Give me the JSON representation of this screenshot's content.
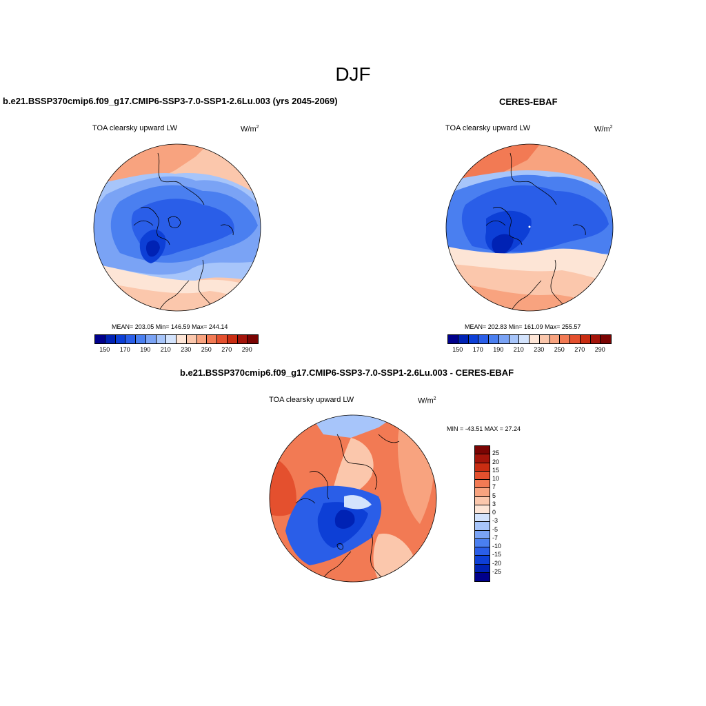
{
  "title": "DJF",
  "panel_left": {
    "title": "b.e21.BSSP370cmip6.f09_g17.CMIP6-SSP3-7.0-SSP1-2.6Lu.003 (yrs 2045-2069)",
    "variable": "TOA clearsky upward LW",
    "units": "W/m",
    "units_sup": "2",
    "stats": "MEAN= 203.05  Min= 146.59  Max= 244.14"
  },
  "panel_right": {
    "title": "CERES-EBAF",
    "variable": "TOA clearsky upward LW",
    "units": "W/m",
    "units_sup": "2",
    "stats": "MEAN= 202.83  Min= 161.09  Max= 255.57"
  },
  "panel_diff": {
    "title": "b.e21.BSSP370cmip6.f09_g17.CMIP6-SSP3-7.0-SSP1-2.6Lu.003 - CERES-EBAF",
    "variable": "TOA clearsky upward LW",
    "units": "W/m",
    "units_sup": "2",
    "minmax": "MIN = -43.51 MAX =  27.24"
  },
  "colorbar_abs": {
    "colors": [
      "#00008b",
      "#0022b4",
      "#0d3fd6",
      "#2a5ee8",
      "#4a7ff0",
      "#7aa3f5",
      "#a7c5fa",
      "#d3e3fc",
      "#fde5d6",
      "#fbc7ac",
      "#f8a37f",
      "#f27a54",
      "#e4502e",
      "#c92d12",
      "#a3140a",
      "#7a0403"
    ],
    "ticks": [
      "150",
      "170",
      "190",
      "210",
      "230",
      "250",
      "270",
      "290"
    ]
  },
  "colorbar_diff": {
    "colors": [
      "#7a0403",
      "#a3140a",
      "#c92d12",
      "#e4502e",
      "#f27a54",
      "#f8a37f",
      "#fbc7ac",
      "#fde5d6",
      "#d3e3fc",
      "#a7c5fa",
      "#7aa3f5",
      "#4a7ff0",
      "#2a5ee8",
      "#0d3fd6",
      "#0022b4",
      "#00008b"
    ],
    "ticks": [
      "25",
      "20",
      "15",
      "10",
      "7",
      "5",
      "3",
      "0",
      "-3",
      "-5",
      "-7",
      "-10",
      "-15",
      "-20",
      "-25"
    ]
  }
}
